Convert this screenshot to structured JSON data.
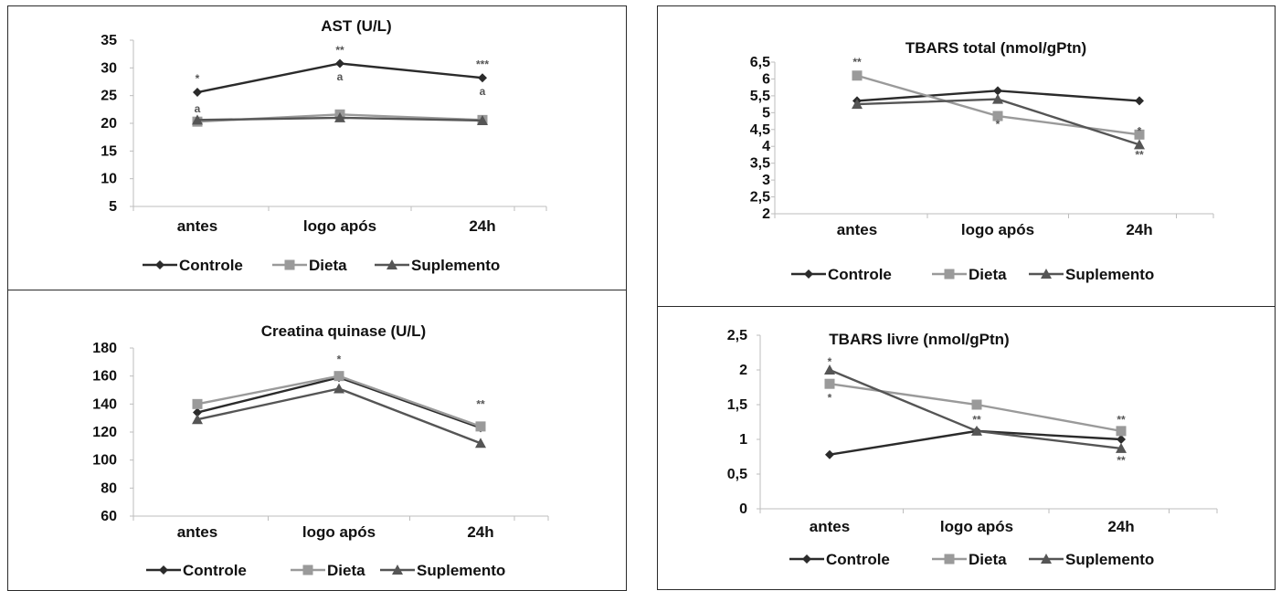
{
  "colors": {
    "Controle": "#2b2b2b",
    "Dieta": "#9a9a9a",
    "Suplemento": "#555555",
    "axis": "#bdbdbd",
    "border": "#2a2a2a"
  },
  "chart_data": [
    {
      "type": "line",
      "title": "AST (U/L)",
      "categories": [
        "antes",
        "logo após",
        "24h"
      ],
      "ylim": [
        5,
        35
      ],
      "yticks": [
        "5",
        "10",
        "15",
        "20",
        "25",
        "30",
        "35"
      ],
      "legend_position": "bottom",
      "series": [
        {
          "name": "Controle",
          "marker": "diamond",
          "values": [
            25.6,
            30.8,
            28.2
          ]
        },
        {
          "name": "Dieta",
          "marker": "square",
          "values": [
            20.3,
            21.6,
            20.6
          ]
        },
        {
          "name": "Suplemento",
          "marker": "triangle",
          "values": [
            20.6,
            21.0,
            20.5
          ]
        }
      ],
      "annotations": [
        {
          "text": "*",
          "x": "antes",
          "y": 28.1
        },
        {
          "text": "a",
          "x": "antes",
          "y": 22.6
        },
        {
          "text": "**",
          "x": "logo após",
          "y": 33.2
        },
        {
          "text": "a",
          "x": "logo após",
          "y": 28.4
        },
        {
          "text": "***",
          "x": "24h",
          "y": 30.6
        },
        {
          "text": "a",
          "x": "24h",
          "y": 25.8
        }
      ]
    },
    {
      "type": "line",
      "title": "TBARS total (nmol/gPtn)",
      "categories": [
        "antes",
        "logo após",
        "24h"
      ],
      "ylim": [
        2,
        6.5
      ],
      "yticks": [
        "2",
        "2,5",
        "3",
        "3,5",
        "4",
        "4,5",
        "5",
        "5,5",
        "6",
        "6,5"
      ],
      "legend_position": "bottom",
      "series": [
        {
          "name": "Controle",
          "marker": "diamond",
          "values": [
            5.35,
            5.65,
            5.35
          ]
        },
        {
          "name": "Dieta",
          "marker": "square",
          "values": [
            6.1,
            4.9,
            4.35
          ]
        },
        {
          "name": "Suplemento",
          "marker": "triangle",
          "values": [
            5.25,
            5.4,
            4.05
          ]
        }
      ],
      "annotations": [
        {
          "text": "**",
          "x": "antes",
          "y": 6.5
        },
        {
          "text": "*",
          "x": "logo após",
          "y": 4.65
        },
        {
          "text": "*",
          "x": "24h",
          "y": 4.45
        },
        {
          "text": "**",
          "x": "24h",
          "y": 3.75
        }
      ]
    },
    {
      "type": "line",
      "title": "Creatina quinase (U/L)",
      "categories": [
        "antes",
        "logo após",
        "24h"
      ],
      "ylim": [
        60,
        180
      ],
      "yticks": [
        "60",
        "80",
        "100",
        "120",
        "140",
        "160",
        "180"
      ],
      "legend_position": "bottom",
      "series": [
        {
          "name": "Controle",
          "marker": "diamond",
          "values": [
            134,
            159,
            123
          ]
        },
        {
          "name": "Dieta",
          "marker": "square",
          "values": [
            140,
            160,
            124
          ]
        },
        {
          "name": "Suplemento",
          "marker": "triangle",
          "values": [
            129,
            151,
            112
          ]
        }
      ],
      "annotations": [
        {
          "text": "*",
          "x": "logo após",
          "y": 172
        },
        {
          "text": "**",
          "x": "24h",
          "y": 140
        }
      ]
    },
    {
      "type": "line",
      "title": "TBARS livre (nmol/gPtn)",
      "categories": [
        "antes",
        "logo após",
        "24h"
      ],
      "ylim": [
        0,
        2.5
      ],
      "yticks": [
        "0",
        "0,5",
        "1",
        "1,5",
        "2",
        "2,5"
      ],
      "legend_position": "bottom",
      "series": [
        {
          "name": "Controle",
          "marker": "diamond",
          "values": [
            0.78,
            1.12,
            1.0
          ]
        },
        {
          "name": "Dieta",
          "marker": "square",
          "values": [
            1.8,
            1.5,
            1.12
          ]
        },
        {
          "name": "Suplemento",
          "marker": "triangle",
          "values": [
            2.0,
            1.12,
            0.87
          ]
        }
      ],
      "annotations": [
        {
          "text": "*",
          "x": "antes",
          "y": 2.12
        },
        {
          "text": "*",
          "x": "antes",
          "y": 1.6
        },
        {
          "text": "**",
          "x": "logo após",
          "y": 1.28
        },
        {
          "text": "**",
          "x": "24h",
          "y": 1.28
        },
        {
          "text": "**",
          "x": "24h",
          "y": 0.7
        }
      ]
    }
  ]
}
